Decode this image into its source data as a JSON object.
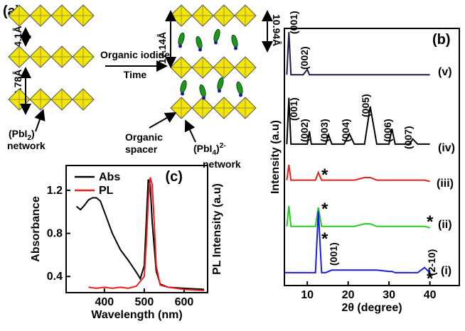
{
  "diagram": {
    "label": "(a)",
    "spacing_top": "4.1Å",
    "spacing_bottom": "6.78Å",
    "left_network": [
      "(PbI",
      "2",
      ")",
      "network"
    ],
    "arrow_top": "Organic iodide",
    "arrow_bottom": "Time",
    "spacing_right_long": "17.14Å",
    "spacing_right_short": "10.94Å",
    "spacer_label": [
      "Organic",
      "spacer"
    ],
    "right_network": [
      "(PbI",
      "4",
      ")",
      "2-",
      "network"
    ]
  },
  "chart_data": [
    {
      "type": "line",
      "label": "(b)",
      "xlabel": "2θ (degree)",
      "ylabel": "Intensity (a.u)",
      "xlim": [
        4.4,
        47.2
      ],
      "xticks": [
        10,
        20,
        30,
        40
      ],
      "ylim": [
        0,
        100
      ],
      "x": [
        4.5,
        5,
        5.5,
        6,
        7,
        9,
        10,
        10.5,
        11,
        12,
        12.7,
        13.5,
        14.5,
        15.2,
        16,
        19,
        20.3,
        21.5,
        24,
        25.4,
        27,
        30,
        30.7,
        31.5,
        35,
        35.8,
        37,
        38.7,
        40
      ],
      "series": [
        {
          "name": "(v)",
          "color": "#1c1c4e",
          "values": [
            null,
            82,
            98.6,
            82,
            82,
            82,
            84,
            82,
            82,
            82,
            82,
            82,
            82,
            82,
            82,
            82,
            82,
            82,
            82,
            82,
            82,
            82,
            82,
            82,
            82,
            82,
            82,
            82,
            82
          ]
        },
        {
          "name": "(iv)",
          "color": "#000000",
          "values": [
            null,
            55,
            73,
            55,
            55,
            55,
            55,
            60,
            55,
            55,
            55,
            55,
            55,
            58.6,
            55,
            55,
            59,
            55,
            55,
            69.6,
            55,
            55,
            61,
            55,
            55,
            57,
            55,
            55,
            55
          ]
        },
        {
          "name": "(iii)",
          "color": "#e8201c",
          "values": [
            null,
            41,
            47,
            41,
            41,
            41,
            41,
            41,
            41,
            41,
            44,
            41,
            41,
            41,
            41,
            41,
            41,
            41,
            42,
            42,
            41,
            41,
            41,
            41,
            41,
            41,
            41,
            41,
            40.5
          ]
        },
        {
          "name": "(ii)",
          "color": "#22cc22",
          "values": [
            null,
            23,
            31,
            23,
            23,
            23,
            23,
            23,
            23,
            23,
            30.4,
            23,
            23,
            23,
            23,
            23,
            23,
            23,
            24,
            24,
            23,
            23,
            23,
            23,
            23,
            23,
            23,
            23,
            22.5
          ]
        },
        {
          "name": "(i)",
          "color": "#1c1ce0",
          "values": [
            5,
            5,
            5,
            5,
            5,
            5,
            5,
            5,
            5,
            5,
            29,
            5,
            5,
            5.5,
            6,
            6,
            6,
            6,
            6,
            6,
            6,
            5.5,
            5.5,
            5,
            5,
            5,
            5,
            7,
            5
          ]
        }
      ],
      "annotations": [
        "(001)",
        "(002)",
        "(001)",
        "(002)",
        "(003)",
        "(004)",
        "(005)",
        "(006)",
        "(007)",
        "*",
        "*",
        "*",
        "*",
        "(001)",
        "*",
        "(2-10)"
      ]
    },
    {
      "type": "line",
      "label": "(c)",
      "xlabel": "Wavelength (nm)",
      "ylabel": "Absorbance",
      "y2label": "PL Intensity (a.u)",
      "xlim": [
        304,
        659
      ],
      "xticks": [
        400,
        500,
        600
      ],
      "ylim": [
        0.25,
        1.43
      ],
      "yticks": [
        0.4,
        0.8,
        1.2
      ],
      "legend": "upper left",
      "series": [
        {
          "name": "Abs",
          "color": "#000000",
          "x": [
            330,
            340,
            350,
            360,
            370,
            380,
            390,
            400,
            420,
            440,
            460,
            480,
            490,
            500,
            505,
            510,
            515,
            520,
            530,
            540,
            560,
            600,
            650
          ],
          "values": [
            1.05,
            1.02,
            1.06,
            1.11,
            1.13,
            1.13,
            1.1,
            1.0,
            0.8,
            0.65,
            0.55,
            0.44,
            0.38,
            0.5,
            0.9,
            1.3,
            1.25,
            0.9,
            0.45,
            0.33,
            0.3,
            0.29,
            0.28
          ]
        },
        {
          "name": "PL",
          "color": "#e8201c",
          "x": [
            360,
            380,
            400,
            420,
            440,
            460,
            480,
            500,
            505,
            510,
            515,
            520,
            525,
            530,
            540,
            560,
            600,
            650
          ],
          "values": [
            0.3,
            0.29,
            0.3,
            0.29,
            0.3,
            0.29,
            0.31,
            0.4,
            0.7,
            1.1,
            1.32,
            1.25,
            0.9,
            0.5,
            0.32,
            0.3,
            0.28,
            0.27
          ]
        }
      ]
    }
  ]
}
